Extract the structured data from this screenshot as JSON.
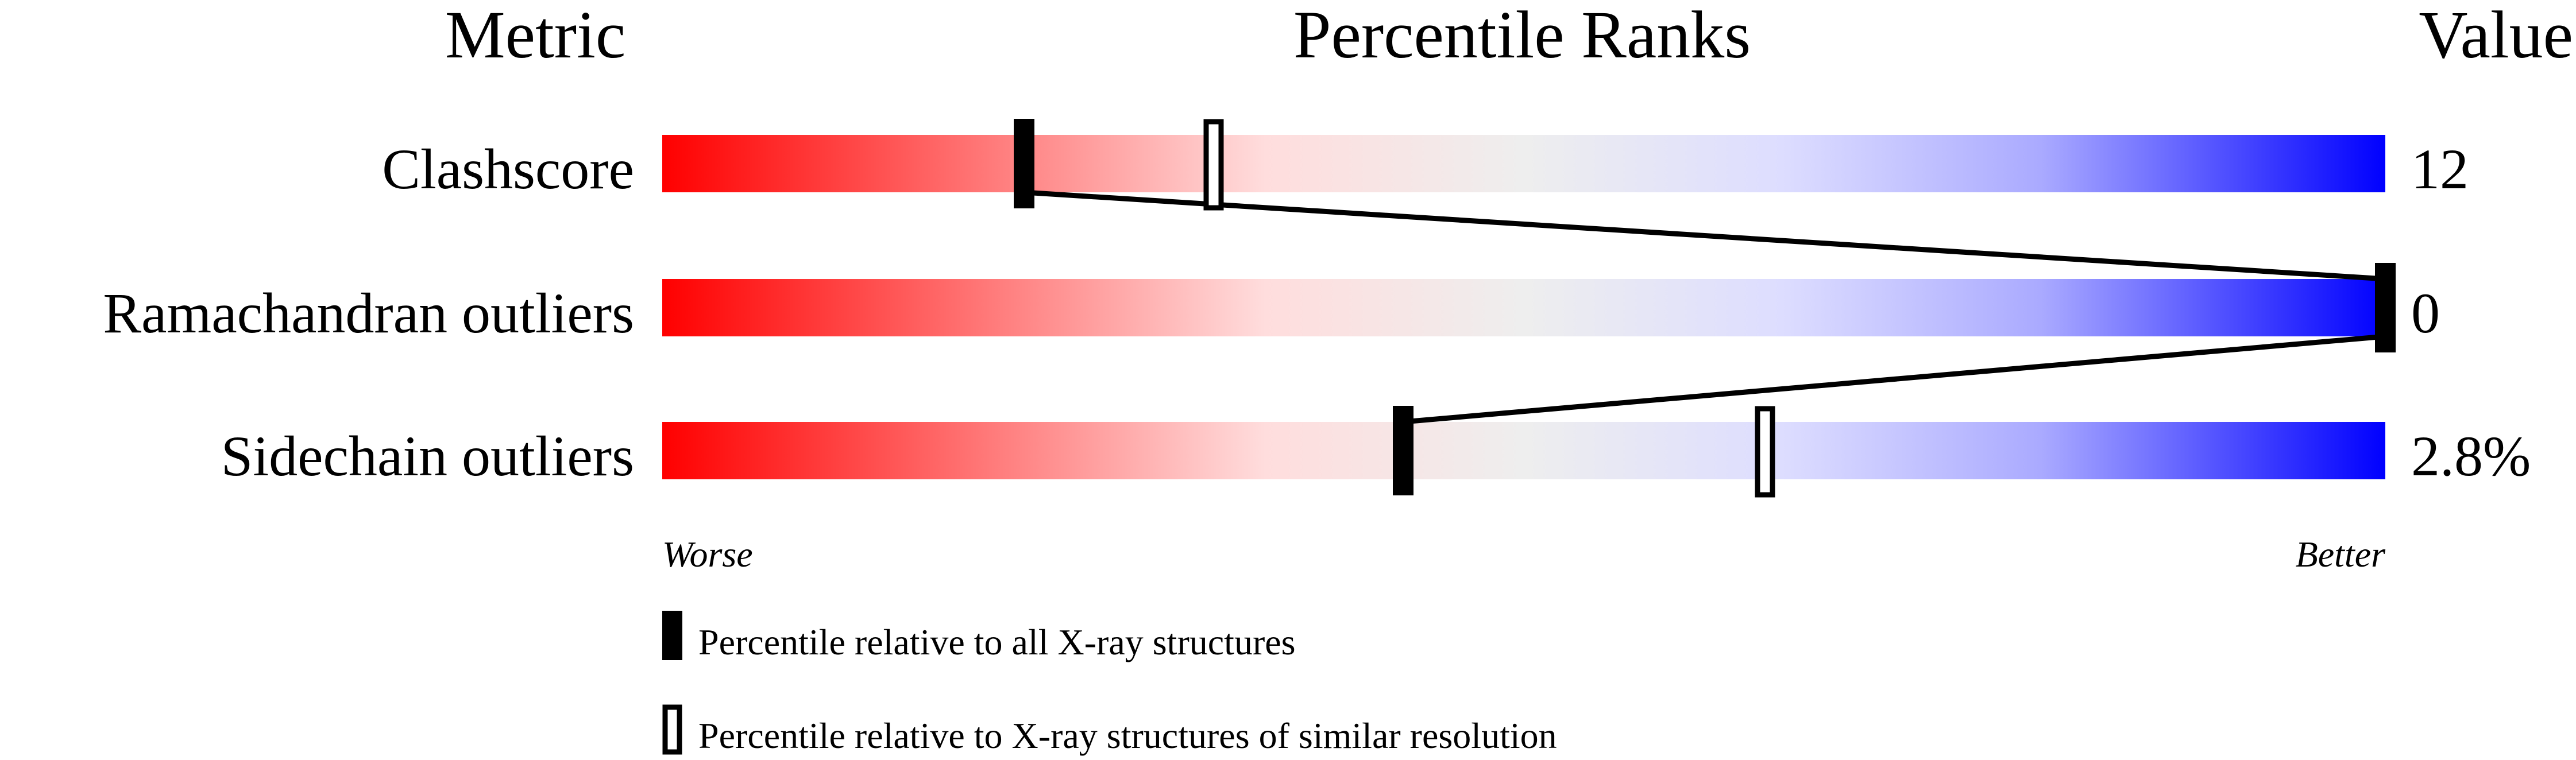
{
  "chart_data": {
    "type": "percentile-ranks",
    "headers": {
      "metric": "Metric",
      "ranks": "Percentile Ranks",
      "value": "Value"
    },
    "axis": {
      "left": "Worse",
      "right": "Better",
      "range": [
        0,
        100
      ]
    },
    "metrics": [
      {
        "name": "Clashscore",
        "value": "12",
        "percentile_all": 21,
        "percentile_similar": 32
      },
      {
        "name": "Ramachandran outliers",
        "value": "0",
        "percentile_all": 100,
        "percentile_similar": 100
      },
      {
        "name": "Sidechain outliers",
        "value": "2.8%",
        "percentile_all": 43,
        "percentile_similar": 64
      }
    ],
    "legend": [
      {
        "marker": "filled",
        "label": "Percentile relative to all X-ray structures"
      },
      {
        "marker": "hollow",
        "label": "Percentile relative to X-ray structures of similar resolution"
      }
    ],
    "gradient_colors": [
      "#ff0000",
      "#ff8080",
      "#ffdddd",
      "#eeeeee",
      "#ddddff",
      "#aaaaff",
      "#0000ff"
    ]
  }
}
